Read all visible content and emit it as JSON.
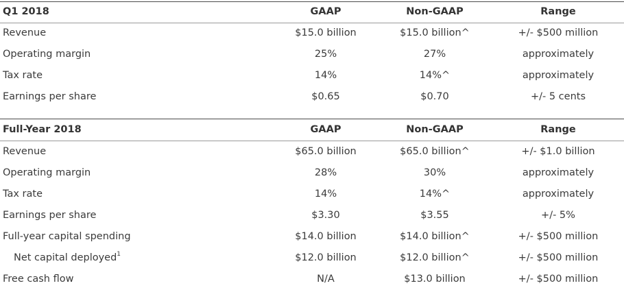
{
  "q1": {
    "header": {
      "period": "Q1 2018",
      "gaap": "GAAP",
      "non_gaap": "Non-GAAP",
      "range": "Range"
    },
    "rows": [
      {
        "label": "Revenue",
        "gaap": "$15.0 billion",
        "non_gaap": "$15.0 billion^",
        "range": "+/- $500 million"
      },
      {
        "label": "Operating margin",
        "gaap": "25%",
        "non_gaap": "27%",
        "range": "approximately"
      },
      {
        "label": "Tax rate",
        "gaap": "14%",
        "non_gaap": "14%^",
        "range": "approximately"
      },
      {
        "label": "Earnings per share",
        "gaap": "$0.65",
        "non_gaap": "$0.70",
        "range": "+/- 5 cents"
      }
    ]
  },
  "fy": {
    "header": {
      "period": "Full-Year 2018",
      "gaap": "GAAP",
      "non_gaap": "Non-GAAP",
      "range": "Range"
    },
    "rows": [
      {
        "label": "Revenue",
        "gaap": "$65.0 billion",
        "non_gaap": "$65.0 billion^",
        "range": "+/- $1.0 billion"
      },
      {
        "label": "Operating margin",
        "gaap": "28%",
        "non_gaap": "30%",
        "range": "approximately"
      },
      {
        "label": "Tax rate",
        "gaap": "14%",
        "non_gaap": "14%^",
        "range": "approximately"
      },
      {
        "label": "Earnings per share",
        "gaap": "$3.30",
        "non_gaap": "$3.55",
        "range": "+/- 5%"
      },
      {
        "label": "Full-year capital spending",
        "gaap": "$14.0 billion",
        "non_gaap": "$14.0 billion^",
        "range": "+/- $500 million"
      },
      {
        "label": "Net capital deployed",
        "footnote": "1",
        "gaap": "$12.0 billion",
        "non_gaap": "$12.0 billion^",
        "range": "+/- $500 million"
      },
      {
        "label": "Free cash flow",
        "gaap": "N/A",
        "non_gaap": "$13.0 billion",
        "range": "+/- $500 million"
      }
    ]
  }
}
